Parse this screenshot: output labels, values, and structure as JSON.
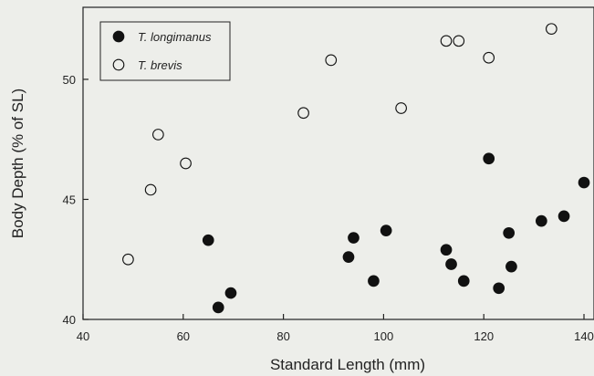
{
  "chart_data": {
    "type": "scatter",
    "xlabel": "Standard Length (mm)",
    "ylabel": "Body Depth (% of SL)",
    "xlim": [
      40,
      142
    ],
    "ylim": [
      40,
      53
    ],
    "x_ticks": [
      40,
      60,
      80,
      100,
      120,
      140
    ],
    "y_ticks": [
      40,
      45,
      50
    ],
    "grid": false,
    "legend_position": "top-left",
    "series": [
      {
        "name": "T. longimanus",
        "marker": "filled-circle",
        "color": "#111111",
        "points": [
          [
            65,
            43.3
          ],
          [
            67,
            40.5
          ],
          [
            69.5,
            41.1
          ],
          [
            93,
            42.6
          ],
          [
            94,
            43.4
          ],
          [
            98,
            41.6
          ],
          [
            100.5,
            43.7
          ],
          [
            112.5,
            42.9
          ],
          [
            113.5,
            42.3
          ],
          [
            116,
            41.6
          ],
          [
            121,
            46.7
          ],
          [
            123,
            41.3
          ],
          [
            125,
            43.6
          ],
          [
            125.5,
            42.2
          ],
          [
            131.5,
            44.1
          ],
          [
            136,
            44.3
          ],
          [
            140,
            45.7
          ]
        ]
      },
      {
        "name": "T. brevis",
        "marker": "open-circle",
        "color": "#111111",
        "points": [
          [
            49,
            42.5
          ],
          [
            53.5,
            45.4
          ],
          [
            55,
            47.7
          ],
          [
            60.5,
            46.5
          ],
          [
            84,
            48.6
          ],
          [
            89.5,
            50.8
          ],
          [
            103.5,
            48.8
          ],
          [
            112.5,
            51.6
          ],
          [
            115,
            51.6
          ],
          [
            121,
            50.9
          ],
          [
            133.5,
            52.1
          ]
        ]
      }
    ]
  }
}
